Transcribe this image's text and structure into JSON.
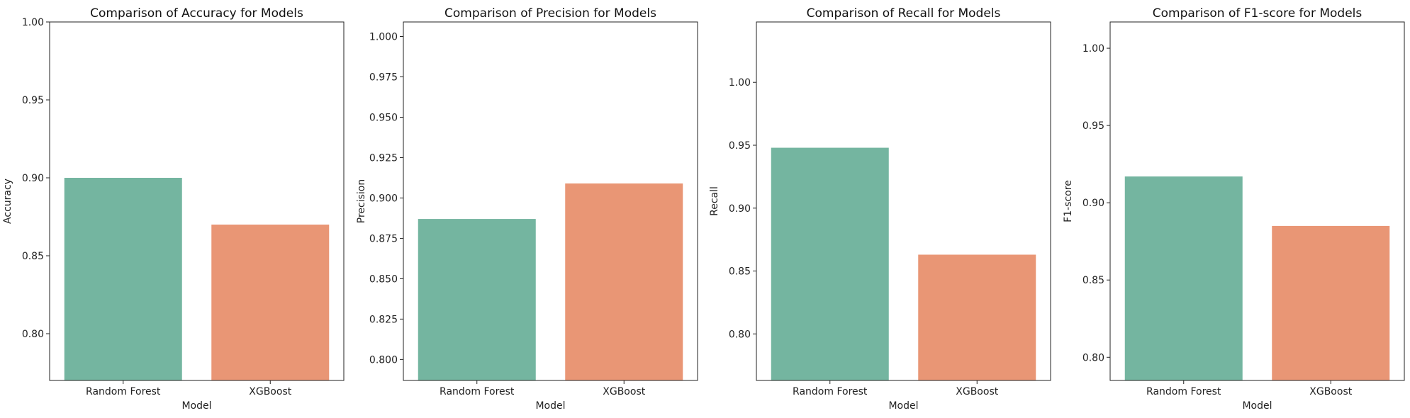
{
  "colors": {
    "Random Forest": "#74b5a0",
    "XGBoost": "#e99675"
  },
  "chart_data": [
    {
      "type": "bar",
      "title": "Comparison of Accuracy for Models",
      "xlabel": "Model",
      "ylabel": "Accuracy",
      "categories": [
        "Random Forest",
        "XGBoost"
      ],
      "values": [
        0.9,
        0.87
      ],
      "ylim": [
        0.77,
        1.0
      ],
      "yticks": [
        "0.80",
        "0.85",
        "0.90",
        "0.95",
        "1.00"
      ],
      "grid": false
    },
    {
      "type": "bar",
      "title": "Comparison of Precision for Models",
      "xlabel": "Model",
      "ylabel": "Precision",
      "categories": [
        "Random Forest",
        "XGBoost"
      ],
      "values": [
        0.887,
        0.909
      ],
      "ylim": [
        0.787,
        1.009
      ],
      "yticks": [
        "0.800",
        "0.825",
        "0.850",
        "0.875",
        "0.900",
        "0.925",
        "0.950",
        "0.975",
        "1.000"
      ],
      "grid": false
    },
    {
      "type": "bar",
      "title": "Comparison of Recall for Models",
      "xlabel": "Model",
      "ylabel": "Recall",
      "categories": [
        "Random Forest",
        "XGBoost"
      ],
      "values": [
        0.948,
        0.863
      ],
      "ylim": [
        0.763,
        1.048
      ],
      "yticks": [
        "0.80",
        "0.85",
        "0.90",
        "0.95",
        "1.00"
      ],
      "grid": false
    },
    {
      "type": "bar",
      "title": "Comparison of F1-score for Models",
      "xlabel": "Model",
      "ylabel": "F1-score",
      "categories": [
        "Random Forest",
        "XGBoost"
      ],
      "values": [
        0.917,
        0.885
      ],
      "ylim": [
        0.785,
        1.017
      ],
      "yticks": [
        "0.80",
        "0.85",
        "0.90",
        "0.95",
        "1.00"
      ],
      "grid": false
    }
  ]
}
